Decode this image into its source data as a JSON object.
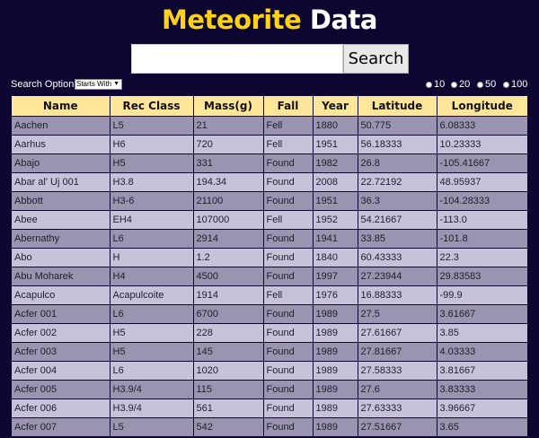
{
  "header": {
    "title_part1": "Meteorite",
    "title_part2": "Data"
  },
  "search": {
    "value": "",
    "placeholder": "",
    "button_label": "Search"
  },
  "options": {
    "label": "Search Options:",
    "select_value": "Starts With",
    "page_sizes": [
      "10",
      "20",
      "50",
      "100"
    ]
  },
  "table": {
    "columns": [
      "Name",
      "Rec Class",
      "Mass(g)",
      "Fall",
      "Year",
      "Latitude",
      "Longitude"
    ],
    "rows": [
      [
        "Aachen",
        "L5",
        "21",
        "Fell",
        "1880",
        "50.775",
        "6.08333"
      ],
      [
        "Aarhus",
        "H6",
        "720",
        "Fell",
        "1951",
        "56.18333",
        "10.23333"
      ],
      [
        "Abajo",
        "H5",
        "331",
        "Found",
        "1982",
        "26.8",
        "-105.41667"
      ],
      [
        "Abar al' Uj 001",
        "H3.8",
        "194.34",
        "Found",
        "2008",
        "22.72192",
        "48.95937"
      ],
      [
        "Abbott",
        "H3-6",
        "21100",
        "Found",
        "1951",
        "36.3",
        "-104.28333"
      ],
      [
        "Abee",
        "EH4",
        "107000",
        "Fell",
        "1952",
        "54.21667",
        "-113.0"
      ],
      [
        "Abernathy",
        "L6",
        "2914",
        "Found",
        "1941",
        "33.85",
        "-101.8"
      ],
      [
        "Abo",
        "H",
        "1.2",
        "Found",
        "1840",
        "60.43333",
        "22.3"
      ],
      [
        "Abu Moharek",
        "H4",
        "4500",
        "Found",
        "1997",
        "27.23944",
        "29.83583"
      ],
      [
        "Acapulco",
        "Acapulcoite",
        "1914",
        "Fell",
        "1976",
        "16.88333",
        "-99.9"
      ],
      [
        "Acfer 001",
        "L6",
        "6700",
        "Found",
        "1989",
        "27.5",
        "3.61667"
      ],
      [
        "Acfer 002",
        "H5",
        "228",
        "Found",
        "1989",
        "27.61667",
        "3.85"
      ],
      [
        "Acfer 003",
        "H5",
        "145",
        "Found",
        "1989",
        "27.81667",
        "4.03333"
      ],
      [
        "Acfer 004",
        "L6",
        "1020",
        "Found",
        "1989",
        "27.58333",
        "3.81667"
      ],
      [
        "Acfer 005",
        "H3.9/4",
        "115",
        "Found",
        "1989",
        "27.6",
        "3.83333"
      ],
      [
        "Acfer 006",
        "H3.9/4",
        "561",
        "Found",
        "1989",
        "27.63333",
        "3.96667"
      ],
      [
        "Acfer 007",
        "L5",
        "542",
        "Found",
        "1989",
        "27.51667",
        "3.65"
      ]
    ]
  }
}
